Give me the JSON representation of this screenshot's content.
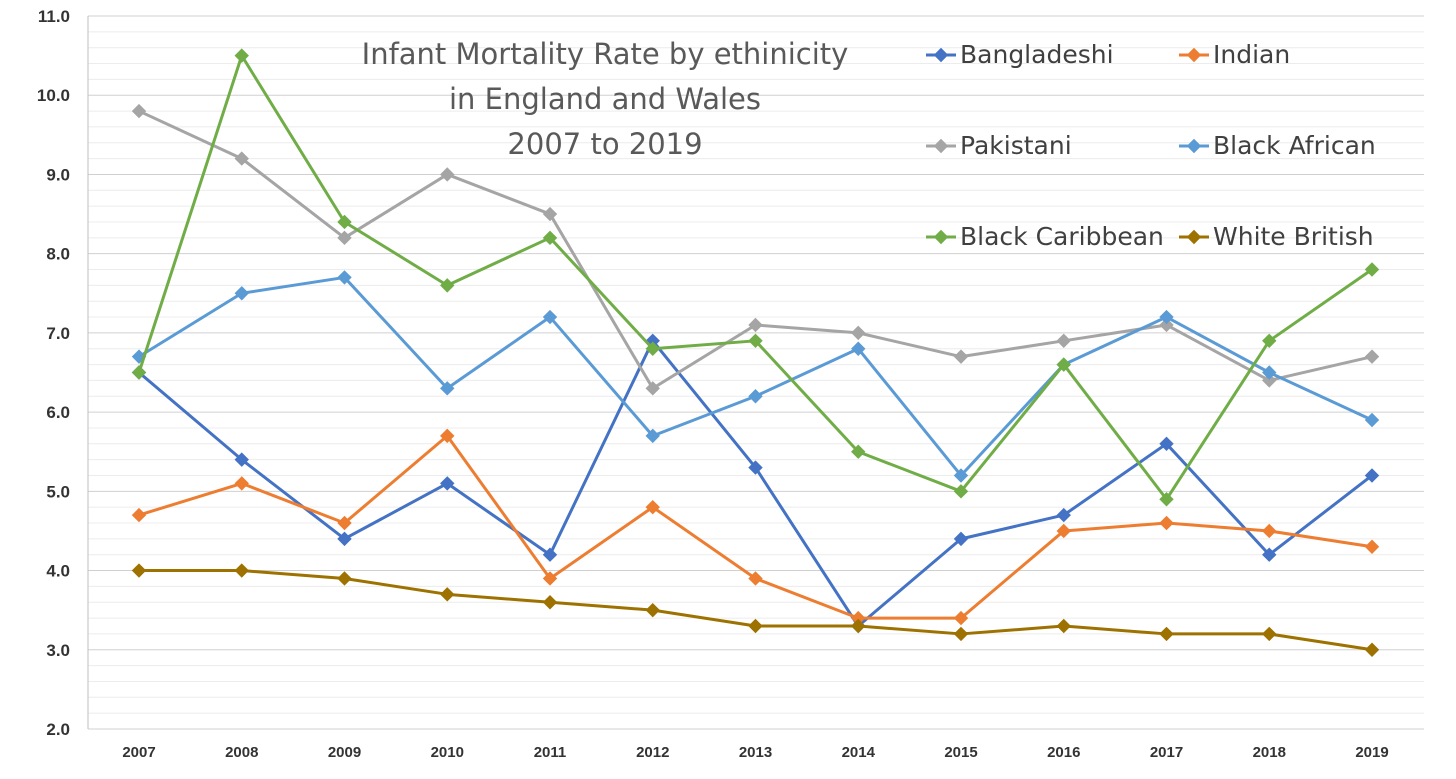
{
  "chart_data": {
    "type": "line",
    "title_lines": [
      "Infant Mortality Rate by ethinicity",
      "in England and Wales",
      "2007 to 2019"
    ],
    "xlabel": "",
    "ylabel": "",
    "ylim": [
      2.0,
      11.0
    ],
    "y_ticks": [
      "2.0",
      "3.0",
      "4.0",
      "5.0",
      "6.0",
      "7.0",
      "8.0",
      "9.0",
      "10.0",
      "11.0"
    ],
    "y_tick_values": [
      2.0,
      3.0,
      4.0,
      5.0,
      6.0,
      7.0,
      8.0,
      9.0,
      10.0,
      11.0
    ],
    "minor_grid_step": 0.2,
    "grid": true,
    "legend_position": "top-right",
    "x": [
      "2007",
      "2008",
      "2009",
      "2010",
      "2011",
      "2012",
      "2013",
      "2014",
      "2015",
      "2016",
      "2017",
      "2018",
      "2019"
    ],
    "series": [
      {
        "name": "Bangladeshi",
        "color": "#4472C4",
        "values": [
          6.5,
          5.4,
          4.4,
          5.1,
          4.2,
          6.9,
          5.3,
          3.3,
          4.4,
          4.7,
          5.6,
          4.2,
          5.2
        ]
      },
      {
        "name": "Indian",
        "color": "#ED7D31",
        "values": [
          4.7,
          5.1,
          4.6,
          5.7,
          3.9,
          4.8,
          3.9,
          3.4,
          3.4,
          4.5,
          4.6,
          4.5,
          4.3
        ]
      },
      {
        "name": "Pakistani",
        "color": "#A5A5A5",
        "values": [
          9.8,
          9.2,
          8.2,
          9.0,
          8.5,
          6.3,
          7.1,
          7.0,
          6.7,
          6.9,
          7.1,
          6.4,
          6.7
        ]
      },
      {
        "name": "Black African",
        "color": "#5B9BD5",
        "values": [
          6.7,
          7.5,
          7.7,
          6.3,
          7.2,
          5.7,
          6.2,
          6.8,
          5.2,
          6.6,
          7.2,
          6.5,
          5.9
        ]
      },
      {
        "name": "Black Caribbean",
        "color": "#70AD47",
        "values": [
          6.5,
          10.5,
          8.4,
          7.6,
          8.2,
          6.8,
          6.9,
          5.5,
          5.0,
          6.6,
          4.9,
          6.9,
          7.8
        ]
      },
      {
        "name": "White British",
        "color": "#9E7200",
        "values": [
          4.0,
          4.0,
          3.9,
          3.7,
          3.6,
          3.5,
          3.3,
          3.3,
          3.2,
          3.3,
          3.2,
          3.2,
          3.0
        ]
      }
    ]
  }
}
